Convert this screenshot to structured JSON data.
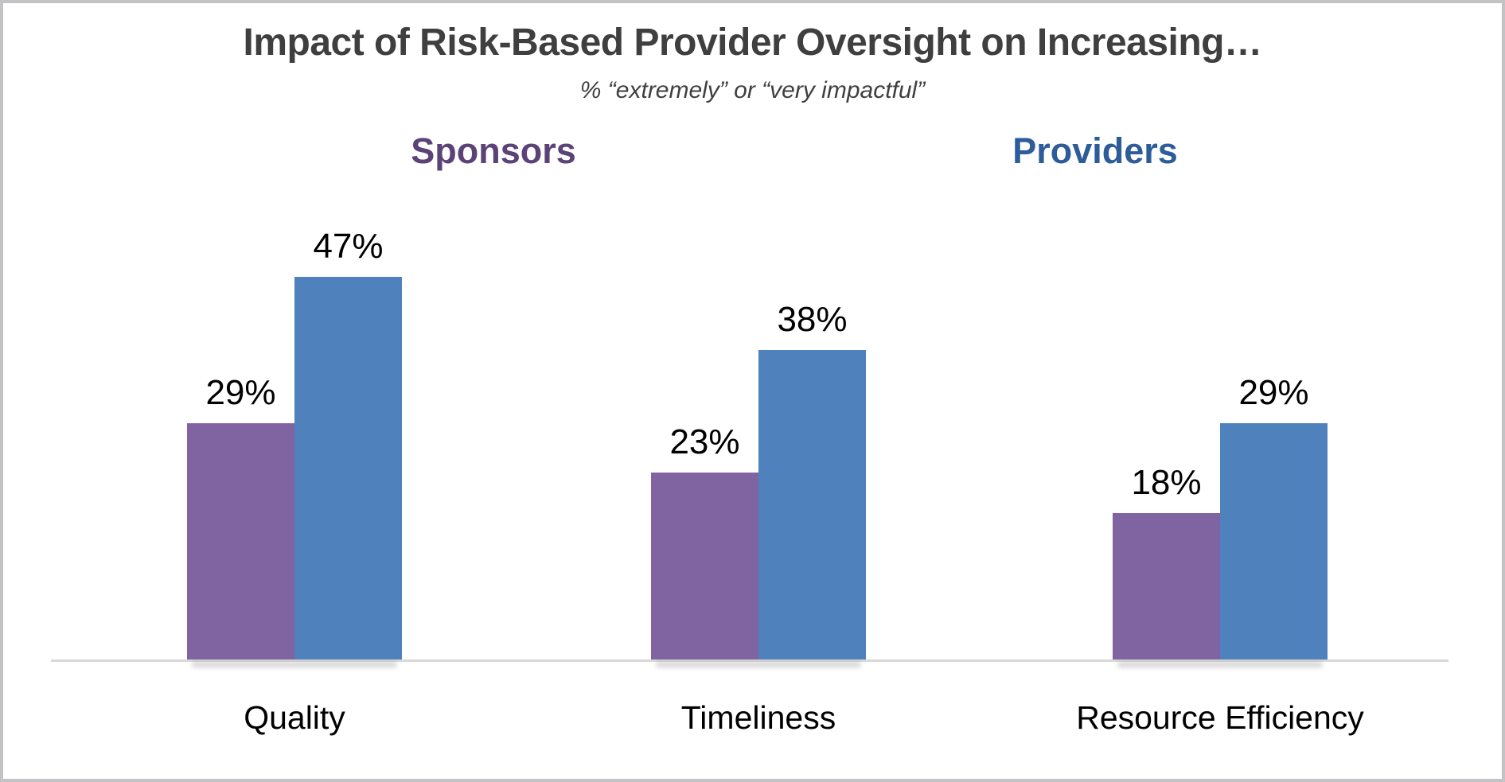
{
  "frame": {
    "border_color": "#c3c3c6",
    "background_color": "#ffffff"
  },
  "chart_data": {
    "type": "bar",
    "title": "Impact of Risk-Based Provider Oversight on Increasing…",
    "subtitle": "% “extremely” or “very impactful”",
    "title_color": "#3f3f3f",
    "categories": [
      "Quality",
      "Timeliness",
      "Resource Efficiency"
    ],
    "series": [
      {
        "name": "Sponsors",
        "color": "#8064A2",
        "name_color": "#5b4378",
        "values": [
          29,
          23,
          18
        ]
      },
      {
        "name": "Providers",
        "color": "#4F81BD",
        "name_color": "#2e5c99",
        "values": [
          47,
          38,
          29
        ]
      }
    ],
    "value_suffix": "%",
    "value_label_color": "#000000",
    "category_label_color": "#000000",
    "ylim": [
      0,
      50
    ],
    "grid": false,
    "y_axis_visible": false,
    "x_axis_line_color": "#d9d9d9",
    "legend_position": "top-headers-over-chart"
  }
}
